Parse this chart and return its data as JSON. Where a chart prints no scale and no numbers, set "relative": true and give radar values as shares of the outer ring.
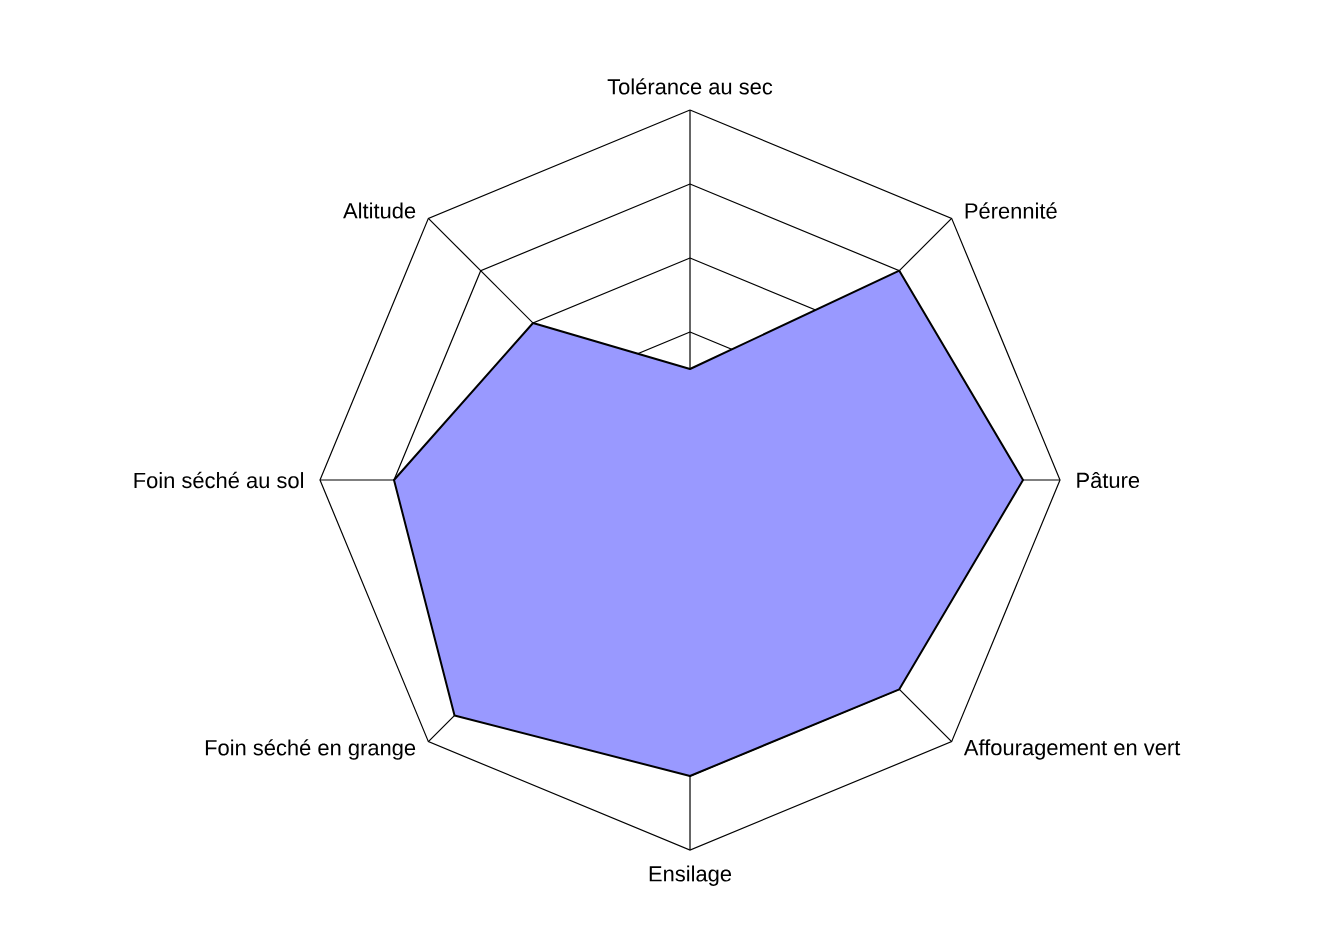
{
  "chart_data": {
    "type": "radar",
    "relative": true,
    "grid": true,
    "categories": [
      "Tolérance au sec",
      "Pérennité",
      "Pâture",
      "Affouragement en vert",
      "Ensilage",
      "Foin séché en grange",
      "Foin séché au sol",
      "Altitude"
    ],
    "series": [
      {
        "color": "#9999ff",
        "values": [
          0.3,
          0.8,
          0.9,
          0.8,
          0.8,
          0.9,
          0.8,
          0.6
        ]
      }
    ]
  }
}
